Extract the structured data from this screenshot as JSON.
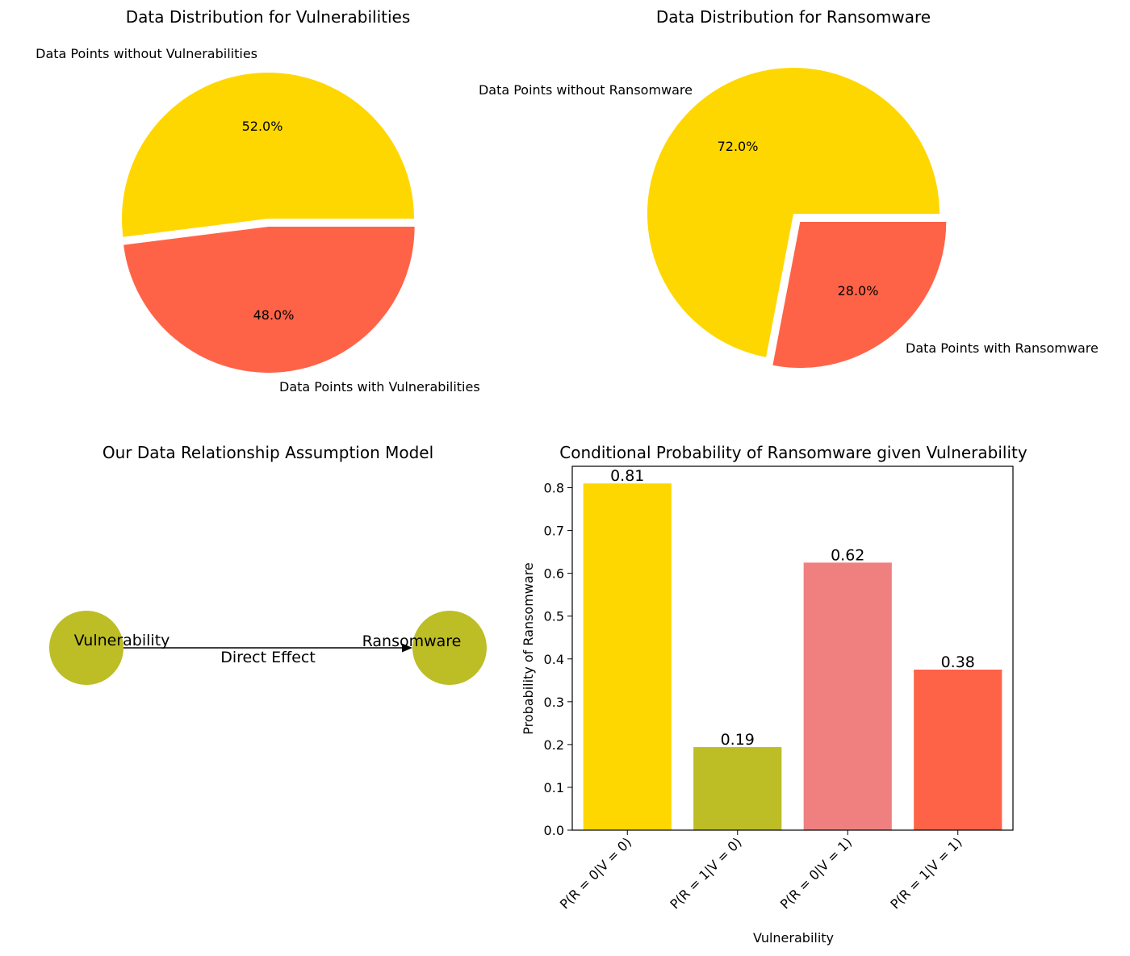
{
  "colors": {
    "gold": "#FFD700",
    "tomato": "#FF6347",
    "olive": "#BDBD26",
    "lightcoral": "#F08080"
  },
  "chart_data": [
    {
      "type": "pie",
      "title": "Data Distribution for Vulnerabilities",
      "slices": [
        {
          "label": "Data Points without Vulnerabilities",
          "value": 52.0,
          "pct_label": "52.0%",
          "color": "#FFD700"
        },
        {
          "label": "Data Points with Vulnerabilities",
          "value": 48.0,
          "pct_label": "48.0%",
          "color": "#FF6347"
        }
      ],
      "exploded": "Data Points with Vulnerabilities"
    },
    {
      "type": "pie",
      "title": "Data Distribution for Ransomware",
      "slices": [
        {
          "label": "Data Points without Ransomware",
          "value": 72.0,
          "pct_label": "72.0%",
          "color": "#FFD700"
        },
        {
          "label": "Data Points with Ransomware",
          "value": 28.0,
          "pct_label": "28.0%",
          "color": "#FF6347"
        }
      ],
      "exploded": "Data Points with Ransomware"
    },
    {
      "type": "diagram",
      "title": "Our Data Relationship Assumption Model",
      "nodes": [
        {
          "id": "V",
          "label": "Vulnerability",
          "color": "#BDBD26"
        },
        {
          "id": "R",
          "label": "Ransomware",
          "color": "#BDBD26"
        }
      ],
      "edges": [
        {
          "from": "V",
          "to": "R",
          "label": "Direct Effect"
        }
      ]
    },
    {
      "type": "bar",
      "title": "Conditional Probability of Ransomware given Vulnerability",
      "xlabel": "Vulnerability",
      "ylabel": "Probability of Ransomware",
      "categories": [
        "P(R = 0|V = 0)",
        "P(R = 1|V = 0)",
        "P(R = 0|V = 1)",
        "P(R = 1|V = 1)"
      ],
      "values": [
        0.81,
        0.194,
        0.625,
        0.375
      ],
      "value_labels": [
        "0.81",
        "0.19",
        "0.62",
        "0.38"
      ],
      "colors": [
        "#FFD700",
        "#BDBD26",
        "#F08080",
        "#FF6347"
      ],
      "ylim": [
        0,
        0.85
      ],
      "yticks": [
        0.0,
        0.1,
        0.2,
        0.3,
        0.4,
        0.5,
        0.6,
        0.7,
        0.8
      ],
      "ytick_labels": [
        "0.0",
        "0.1",
        "0.2",
        "0.3",
        "0.4",
        "0.5",
        "0.6",
        "0.7",
        "0.8"
      ]
    }
  ]
}
